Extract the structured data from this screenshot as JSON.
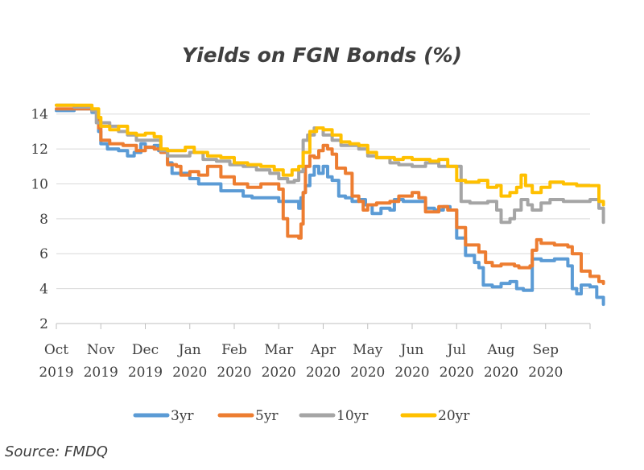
{
  "chart_data": {
    "type": "line",
    "title": "Yields on FGN Bonds (%)",
    "xlabel": "",
    "ylabel": "",
    "ylim": [
      2,
      15
    ],
    "yticks": [
      2,
      4,
      6,
      8,
      10,
      12,
      14
    ],
    "x_range": [
      0,
      12
    ],
    "x_ticks": [
      {
        "month": "Oct",
        "year": "2019"
      },
      {
        "month": "Nov",
        "year": "2019"
      },
      {
        "month": "Dec",
        "year": "2019"
      },
      {
        "month": "Jan",
        "year": "2020"
      },
      {
        "month": "Feb",
        "year": "2020"
      },
      {
        "month": "Mar",
        "year": "2020"
      },
      {
        "month": "Apr",
        "year": "2020"
      },
      {
        "month": "May",
        "year": "2020"
      },
      {
        "month": "Jun",
        "year": "2020"
      },
      {
        "month": "Jul",
        "year": "2020"
      },
      {
        "month": "Aug",
        "year": "2020"
      },
      {
        "month": "Sep",
        "year": "2020"
      }
    ],
    "series": [
      {
        "name": "3yr",
        "color": "#5b9bd5",
        "points": [
          [
            0,
            14.2
          ],
          [
            0.4,
            14.3
          ],
          [
            0.8,
            14.1
          ],
          [
            0.95,
            13.0
          ],
          [
            1.0,
            12.3
          ],
          [
            1.15,
            12.0
          ],
          [
            1.4,
            11.9
          ],
          [
            1.6,
            11.6
          ],
          [
            1.75,
            11.8
          ],
          [
            1.9,
            12.3
          ],
          [
            2.0,
            12.1
          ],
          [
            2.2,
            12.2
          ],
          [
            2.3,
            11.9
          ],
          [
            2.5,
            11.2
          ],
          [
            2.6,
            10.6
          ],
          [
            2.8,
            10.6
          ],
          [
            3.0,
            10.3
          ],
          [
            3.2,
            10.0
          ],
          [
            3.5,
            10.0
          ],
          [
            3.7,
            9.6
          ],
          [
            4.0,
            9.6
          ],
          [
            4.2,
            9.3
          ],
          [
            4.4,
            9.2
          ],
          [
            4.7,
            9.2
          ],
          [
            5.0,
            9.0
          ],
          [
            5.2,
            9.0
          ],
          [
            5.35,
            9.0
          ],
          [
            5.45,
            8.6
          ],
          [
            5.5,
            9.2
          ],
          [
            5.55,
            9.5
          ],
          [
            5.6,
            9.9
          ],
          [
            5.7,
            10.5
          ],
          [
            5.8,
            11.0
          ],
          [
            5.9,
            10.6
          ],
          [
            6.0,
            11.0
          ],
          [
            6.1,
            10.4
          ],
          [
            6.2,
            10.2
          ],
          [
            6.35,
            9.3
          ],
          [
            6.5,
            9.2
          ],
          [
            6.65,
            9.0
          ],
          [
            6.8,
            9.1
          ],
          [
            6.95,
            8.8
          ],
          [
            7.1,
            8.3
          ],
          [
            7.3,
            8.6
          ],
          [
            7.5,
            8.5
          ],
          [
            7.6,
            9.1
          ],
          [
            7.8,
            9.0
          ],
          [
            7.9,
            9.0
          ],
          [
            8.1,
            9.0
          ],
          [
            8.3,
            8.6
          ],
          [
            8.5,
            8.5
          ],
          [
            8.7,
            8.7
          ],
          [
            8.85,
            8.5
          ],
          [
            9.0,
            6.9
          ],
          [
            9.2,
            5.9
          ],
          [
            9.4,
            5.5
          ],
          [
            9.5,
            5.2
          ],
          [
            9.6,
            4.2
          ],
          [
            9.8,
            4.1
          ],
          [
            10.0,
            4.3
          ],
          [
            10.2,
            4.4
          ],
          [
            10.35,
            4.0
          ],
          [
            10.5,
            3.9
          ],
          [
            10.65,
            3.9
          ],
          [
            10.7,
            5.7
          ],
          [
            10.9,
            5.6
          ],
          [
            11.2,
            5.7
          ],
          [
            11.35,
            5.7
          ],
          [
            11.5,
            5.3
          ],
          [
            11.6,
            4.0
          ],
          [
            11.7,
            3.7
          ],
          [
            11.8,
            4.2
          ],
          [
            12.0,
            4.1
          ],
          [
            12.15,
            3.5
          ],
          [
            12.3,
            3.1
          ]
        ]
      },
      {
        "name": "5yr",
        "color": "#ed7d31",
        "points": [
          [
            0,
            14.3
          ],
          [
            0.4,
            14.3
          ],
          [
            0.8,
            14.2
          ],
          [
            0.95,
            13.2
          ],
          [
            1.0,
            12.5
          ],
          [
            1.2,
            12.3
          ],
          [
            1.5,
            12.2
          ],
          [
            1.7,
            12.2
          ],
          [
            1.8,
            11.9
          ],
          [
            2.0,
            12.1
          ],
          [
            2.2,
            12.0
          ],
          [
            2.35,
            11.8
          ],
          [
            2.5,
            11.1
          ],
          [
            2.7,
            11.0
          ],
          [
            2.8,
            10.5
          ],
          [
            3.0,
            10.7
          ],
          [
            3.2,
            10.5
          ],
          [
            3.4,
            11.0
          ],
          [
            3.7,
            10.4
          ],
          [
            4.0,
            10.0
          ],
          [
            4.3,
            9.8
          ],
          [
            4.6,
            10.0
          ],
          [
            4.9,
            10.0
          ],
          [
            5.0,
            9.7
          ],
          [
            5.1,
            8.0
          ],
          [
            5.2,
            7.0
          ],
          [
            5.45,
            6.9
          ],
          [
            5.5,
            7.7
          ],
          [
            5.55,
            9.5
          ],
          [
            5.6,
            11.0
          ],
          [
            5.7,
            11.6
          ],
          [
            5.8,
            11.5
          ],
          [
            5.9,
            11.9
          ],
          [
            6.0,
            12.2
          ],
          [
            6.1,
            12.0
          ],
          [
            6.2,
            11.7
          ],
          [
            6.3,
            10.9
          ],
          [
            6.5,
            10.6
          ],
          [
            6.65,
            9.3
          ],
          [
            6.8,
            9.0
          ],
          [
            6.9,
            8.5
          ],
          [
            7.0,
            8.8
          ],
          [
            7.2,
            8.9
          ],
          [
            7.5,
            9.0
          ],
          [
            7.7,
            9.3
          ],
          [
            7.9,
            9.3
          ],
          [
            8.0,
            9.5
          ],
          [
            8.15,
            9.2
          ],
          [
            8.3,
            8.4
          ],
          [
            8.6,
            8.7
          ],
          [
            8.8,
            8.5
          ],
          [
            9.0,
            7.5
          ],
          [
            9.2,
            6.5
          ],
          [
            9.4,
            6.5
          ],
          [
            9.5,
            6.1
          ],
          [
            9.65,
            5.5
          ],
          [
            9.8,
            5.3
          ],
          [
            10.0,
            5.4
          ],
          [
            10.1,
            5.4
          ],
          [
            10.3,
            5.3
          ],
          [
            10.4,
            5.2
          ],
          [
            10.55,
            5.2
          ],
          [
            10.65,
            5.3
          ],
          [
            10.7,
            6.2
          ],
          [
            10.8,
            6.8
          ],
          [
            10.9,
            6.6
          ],
          [
            11.2,
            6.5
          ],
          [
            11.5,
            6.4
          ],
          [
            11.6,
            6.0
          ],
          [
            11.8,
            5.0
          ],
          [
            12.0,
            4.7
          ],
          [
            12.2,
            4.4
          ],
          [
            12.3,
            4.3
          ]
        ]
      },
      {
        "name": "10yr",
        "color": "#a5a5a5",
        "points": [
          [
            0,
            14.5
          ],
          [
            0.4,
            14.4
          ],
          [
            0.8,
            14.2
          ],
          [
            0.9,
            13.5
          ],
          [
            1.2,
            13.3
          ],
          [
            1.4,
            13.0
          ],
          [
            1.6,
            12.8
          ],
          [
            1.8,
            12.5
          ],
          [
            2.0,
            12.5
          ],
          [
            2.2,
            12.5
          ],
          [
            2.35,
            11.9
          ],
          [
            2.5,
            11.6
          ],
          [
            2.8,
            11.6
          ],
          [
            3.0,
            11.8
          ],
          [
            3.3,
            11.4
          ],
          [
            3.6,
            11.3
          ],
          [
            3.9,
            11.1
          ],
          [
            4.2,
            11.0
          ],
          [
            4.5,
            10.8
          ],
          [
            4.8,
            10.6
          ],
          [
            5.0,
            10.3
          ],
          [
            5.2,
            10.1
          ],
          [
            5.35,
            10.2
          ],
          [
            5.45,
            10.7
          ],
          [
            5.55,
            12.5
          ],
          [
            5.65,
            12.8
          ],
          [
            5.8,
            13.2
          ],
          [
            6.0,
            12.8
          ],
          [
            6.2,
            12.5
          ],
          [
            6.4,
            12.2
          ],
          [
            6.6,
            12.2
          ],
          [
            6.8,
            12.0
          ],
          [
            7.0,
            11.6
          ],
          [
            7.2,
            11.5
          ],
          [
            7.5,
            11.2
          ],
          [
            7.7,
            11.1
          ],
          [
            8.0,
            11.0
          ],
          [
            8.3,
            11.2
          ],
          [
            8.6,
            11.0
          ],
          [
            8.8,
            11.0
          ],
          [
            9.0,
            11.0
          ],
          [
            9.1,
            9.0
          ],
          [
            9.3,
            8.9
          ],
          [
            9.5,
            8.9
          ],
          [
            9.7,
            9.0
          ],
          [
            9.9,
            8.5
          ],
          [
            10.0,
            7.8
          ],
          [
            10.2,
            8.0
          ],
          [
            10.3,
            8.5
          ],
          [
            10.45,
            9.1
          ],
          [
            10.6,
            8.8
          ],
          [
            10.7,
            8.5
          ],
          [
            10.9,
            8.9
          ],
          [
            11.1,
            9.1
          ],
          [
            11.4,
            9.0
          ],
          [
            11.7,
            9.0
          ],
          [
            12.0,
            9.1
          ],
          [
            12.2,
            8.6
          ],
          [
            12.3,
            7.8
          ]
        ]
      },
      {
        "name": "20yr",
        "color": "#ffc000",
        "points": [
          [
            0,
            14.5
          ],
          [
            0.4,
            14.5
          ],
          [
            0.8,
            14.3
          ],
          [
            0.95,
            13.8
          ],
          [
            1.0,
            13.3
          ],
          [
            1.2,
            13.1
          ],
          [
            1.4,
            13.3
          ],
          [
            1.6,
            12.9
          ],
          [
            1.8,
            12.8
          ],
          [
            2.0,
            12.9
          ],
          [
            2.2,
            12.7
          ],
          [
            2.35,
            12.0
          ],
          [
            2.5,
            11.9
          ],
          [
            2.7,
            11.9
          ],
          [
            2.9,
            12.1
          ],
          [
            3.1,
            11.8
          ],
          [
            3.4,
            11.6
          ],
          [
            3.7,
            11.5
          ],
          [
            4.0,
            11.2
          ],
          [
            4.3,
            11.1
          ],
          [
            4.6,
            11.0
          ],
          [
            4.9,
            10.8
          ],
          [
            5.1,
            10.5
          ],
          [
            5.3,
            10.8
          ],
          [
            5.45,
            11.0
          ],
          [
            5.55,
            11.8
          ],
          [
            5.7,
            13.0
          ],
          [
            5.85,
            13.2
          ],
          [
            6.0,
            13.1
          ],
          [
            6.2,
            12.8
          ],
          [
            6.4,
            12.4
          ],
          [
            6.6,
            12.3
          ],
          [
            6.8,
            12.2
          ],
          [
            7.0,
            11.8
          ],
          [
            7.2,
            11.5
          ],
          [
            7.4,
            11.5
          ],
          [
            7.6,
            11.4
          ],
          [
            7.8,
            11.5
          ],
          [
            8.0,
            11.4
          ],
          [
            8.2,
            11.4
          ],
          [
            8.4,
            11.3
          ],
          [
            8.6,
            11.4
          ],
          [
            8.8,
            11.0
          ],
          [
            9.0,
            10.2
          ],
          [
            9.2,
            10.1
          ],
          [
            9.5,
            10.2
          ],
          [
            9.7,
            9.8
          ],
          [
            9.9,
            9.9
          ],
          [
            10.0,
            9.3
          ],
          [
            10.2,
            9.5
          ],
          [
            10.35,
            9.8
          ],
          [
            10.45,
            10.5
          ],
          [
            10.55,
            9.9
          ],
          [
            10.7,
            9.5
          ],
          [
            10.9,
            9.8
          ],
          [
            11.1,
            10.1
          ],
          [
            11.4,
            10.0
          ],
          [
            11.7,
            9.9
          ],
          [
            12.0,
            9.9
          ],
          [
            12.2,
            9.0
          ],
          [
            12.3,
            8.8
          ]
        ]
      }
    ]
  },
  "source": "Source: FMDQ"
}
